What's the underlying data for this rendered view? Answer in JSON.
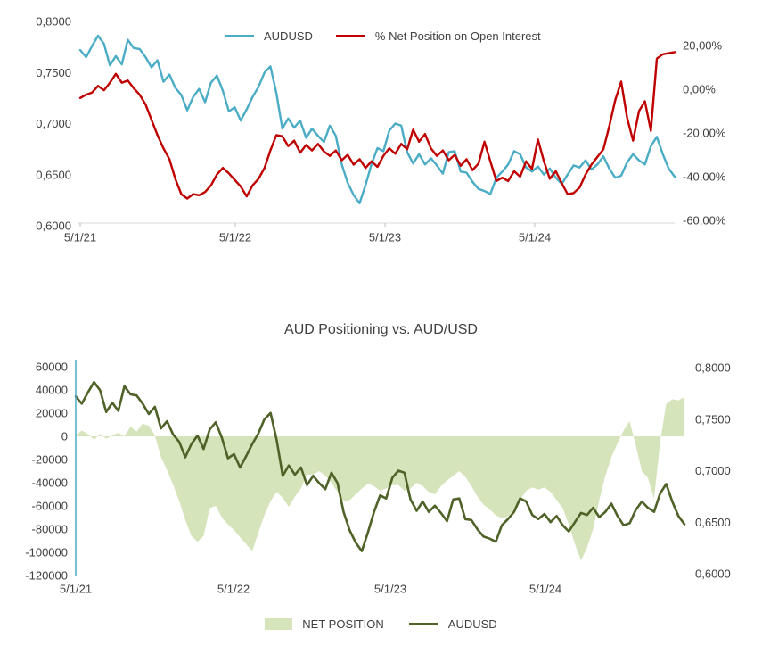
{
  "page": {
    "background": "#FFFFFF",
    "text_color": "#404040"
  },
  "chart_data": [
    {
      "type": "line",
      "title": "",
      "legend_position": "top",
      "grid": "off",
      "x_tick_labels": [
        "5/1/21",
        "5/1/22",
        "5/1/23",
        "5/1/24"
      ],
      "left_axis": {
        "tick_labels": [
          "0,8000",
          "0,7500",
          "0,7000",
          "0,6500",
          "0,6000"
        ],
        "max": 0.8,
        "min": 0.6
      },
      "right_axis": {
        "tick_labels": [
          "20,00%",
          "0,00%",
          "-20,00%",
          "-40,00%",
          "-60,00%"
        ],
        "max": 20,
        "min": -60
      },
      "series": [
        {
          "name": "AUDUSD",
          "axis": "left",
          "color": "#4BACC6",
          "values": [
            0.772,
            0.765,
            0.776,
            0.786,
            0.778,
            0.757,
            0.766,
            0.758,
            0.782,
            0.774,
            0.773,
            0.765,
            0.755,
            0.762,
            0.741,
            0.748,
            0.735,
            0.728,
            0.713,
            0.726,
            0.734,
            0.721,
            0.74,
            0.747,
            0.732,
            0.712,
            0.716,
            0.703,
            0.714,
            0.726,
            0.736,
            0.75,
            0.756,
            0.73,
            0.695,
            0.705,
            0.696,
            0.703,
            0.686,
            0.695,
            0.688,
            0.682,
            0.698,
            0.688,
            0.66,
            0.642,
            0.63,
            0.622,
            0.64,
            0.66,
            0.676,
            0.673,
            0.693,
            0.7,
            0.698,
            0.672,
            0.661,
            0.67,
            0.66,
            0.666,
            0.659,
            0.651,
            0.672,
            0.673,
            0.653,
            0.652,
            0.643,
            0.636,
            0.634,
            0.631,
            0.647,
            0.653,
            0.66,
            0.673,
            0.67,
            0.657,
            0.653,
            0.658,
            0.65,
            0.656,
            0.647,
            0.641,
            0.65,
            0.659,
            0.657,
            0.664,
            0.655,
            0.66,
            0.668,
            0.656,
            0.647,
            0.649,
            0.662,
            0.67,
            0.664,
            0.66,
            0.678,
            0.687,
            0.67,
            0.656,
            0.648
          ]
        },
        {
          "name": "% Net Position on Open Interest",
          "axis": "right",
          "color": "#C00000",
          "values": [
            -4,
            -2.5,
            -1.5,
            1.5,
            -0.5,
            3,
            7,
            3,
            4,
            0.5,
            -2.5,
            -7,
            -14,
            -21,
            -27,
            -32,
            -41,
            -48,
            -50,
            -48,
            -48.5,
            -47,
            -44,
            -39,
            -36,
            -38.5,
            -41.5,
            -44.5,
            -49,
            -44,
            -41,
            -36,
            -28,
            -21,
            -21.5,
            -26,
            -23.5,
            -29,
            -25.5,
            -28,
            -25,
            -28.5,
            -30.5,
            -28,
            -32.5,
            -30,
            -34.5,
            -32,
            -36,
            -33,
            -35.5,
            -30.5,
            -27,
            -29.5,
            -25,
            -27.5,
            -18.5,
            -24,
            -20.5,
            -27,
            -30.5,
            -28,
            -32.5,
            -30,
            -35,
            -32,
            -37,
            -34,
            -24,
            -33,
            -42,
            -40.5,
            -42,
            -37.5,
            -40,
            -33,
            -36.5,
            -23,
            -33,
            -41,
            -37.5,
            -43,
            -48,
            -47.5,
            -45,
            -39,
            -34.5,
            -31,
            -27.5,
            -17,
            -5,
            3.5,
            -13,
            -23.5,
            -10,
            -5.5,
            -19,
            14,
            16,
            16.5,
            17
          ]
        }
      ]
    },
    {
      "type": "area+line",
      "title": "AUD Positioning vs. AUD/USD",
      "legend_position": "bottom",
      "grid": "off",
      "x_tick_labels": [
        "5/1/21",
        "5/1/22",
        "5/1/23",
        "5/1/24"
      ],
      "left_axis": {
        "tick_labels": [
          "60000",
          "40000",
          "20000",
          "0",
          "-20000",
          "-40000",
          "-60000",
          "-80000",
          "-100000",
          "-120000"
        ],
        "max": 60000,
        "min": -120000
      },
      "right_axis": {
        "tick_labels": [
          "0,8000",
          "0,7500",
          "0,7000",
          "0,6500",
          "0,6000"
        ],
        "max": 0.8,
        "min": 0.6
      },
      "axis_line_color": "#4BACC6",
      "series": [
        {
          "name": "NET POSITION",
          "type": "area",
          "axis": "left",
          "color": "#D6E4BC",
          "values": [
            1000,
            5000,
            2000,
            -3000,
            2000,
            -2000,
            1000,
            3000,
            0,
            8500,
            4000,
            11000,
            9000,
            1000,
            -18000,
            -29000,
            -42000,
            -56000,
            -72000,
            -86000,
            -91000,
            -86000,
            -62000,
            -60000,
            -70000,
            -76000,
            -81000,
            -87000,
            -93000,
            -99000,
            -83000,
            -68000,
            -56000,
            -48000,
            -53000,
            -61000,
            -52000,
            -45000,
            -33000,
            -33000,
            -30000,
            -34000,
            -40000,
            -48000,
            -56000,
            -55000,
            -50000,
            -45000,
            -41000,
            -43000,
            -47000,
            -45000,
            -42000,
            -42000,
            -47000,
            -45000,
            -40000,
            -43000,
            -48000,
            -50000,
            -43000,
            -38000,
            -34000,
            -30000,
            -35000,
            -43000,
            -52000,
            -59000,
            -63000,
            -68000,
            -71000,
            -69000,
            -63000,
            -55000,
            -47000,
            -44000,
            -46000,
            -44000,
            -48000,
            -55000,
            -62000,
            -76000,
            -93000,
            -107000,
            -96000,
            -80000,
            -55000,
            -34000,
            -18000,
            -6000,
            5000,
            13000,
            -8000,
            -30000,
            -36000,
            -54000,
            -5000,
            28000,
            32000,
            31000,
            34000
          ]
        },
        {
          "name": "AUDUSD",
          "type": "line",
          "axis": "right",
          "color": "#4F6228",
          "values": [
            0.772,
            0.765,
            0.776,
            0.786,
            0.778,
            0.757,
            0.766,
            0.758,
            0.782,
            0.774,
            0.773,
            0.765,
            0.755,
            0.762,
            0.741,
            0.748,
            0.735,
            0.728,
            0.713,
            0.726,
            0.734,
            0.721,
            0.74,
            0.747,
            0.732,
            0.712,
            0.716,
            0.703,
            0.714,
            0.726,
            0.736,
            0.75,
            0.756,
            0.73,
            0.695,
            0.705,
            0.696,
            0.703,
            0.686,
            0.695,
            0.688,
            0.682,
            0.698,
            0.688,
            0.66,
            0.642,
            0.63,
            0.622,
            0.64,
            0.66,
            0.676,
            0.673,
            0.693,
            0.7,
            0.698,
            0.672,
            0.661,
            0.67,
            0.66,
            0.666,
            0.659,
            0.651,
            0.672,
            0.673,
            0.653,
            0.652,
            0.643,
            0.636,
            0.634,
            0.631,
            0.647,
            0.653,
            0.66,
            0.673,
            0.67,
            0.657,
            0.653,
            0.658,
            0.65,
            0.656,
            0.647,
            0.641,
            0.65,
            0.659,
            0.657,
            0.664,
            0.655,
            0.66,
            0.668,
            0.656,
            0.647,
            0.649,
            0.662,
            0.67,
            0.664,
            0.66,
            0.678,
            0.687,
            0.67,
            0.656,
            0.648
          ]
        }
      ]
    }
  ]
}
